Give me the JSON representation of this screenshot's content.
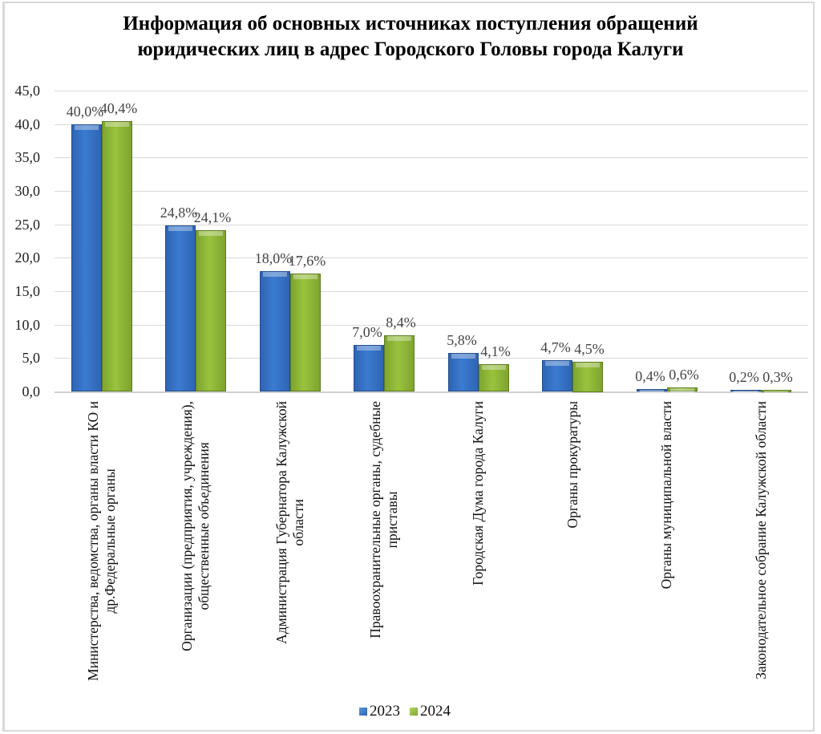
{
  "chart_data": {
    "type": "bar",
    "title": "Информация об основных источниках поступления обращений юридических лиц в адрес Городского Головы города Калуги",
    "title_lines": [
      "Информация об основных источниках поступления обращений",
      "юридических лиц в адрес Городского Головы города Калуги"
    ],
    "xlabel": "",
    "ylabel": "",
    "ylim": [
      0,
      45
    ],
    "yticks": [
      "0,0",
      "5,0",
      "10,0",
      "15,0",
      "20,0",
      "25,0",
      "30,0",
      "35,0",
      "40,0",
      "45,0"
    ],
    "grid": true,
    "legend_position": "bottom",
    "categories": [
      "Министерства, ведомства, органы власти КО и др.Федеральные органы",
      "Организации (предприятия, учреждения), общественные объединения",
      "Администрация Губернатора Калужской области",
      "Правоохранительные органы, судебные приставы",
      "Городская Дума города Калуги",
      "Органы прокуратуры",
      "Органы муниципальной  власти",
      "Законодательное собрание Калужской области"
    ],
    "category_lines": [
      [
        "Министерства, ведомства, органы власти КО и",
        "др.Федеральные органы"
      ],
      [
        "Организации (предприятия, учреждения),",
        "общественные объединения"
      ],
      [
        "Администрация Губернатора Калужской",
        "области"
      ],
      [
        "Правоохранительные органы, судебные",
        "приставы"
      ],
      [
        "Городская Дума города Калуги"
      ],
      [
        "Органы прокуратуры"
      ],
      [
        "Органы муниципальной  власти"
      ],
      [
        "Законодательное собрание Калужской области"
      ]
    ],
    "series": [
      {
        "name": "2023",
        "color": "#3a7bd0",
        "values": [
          40.0,
          24.8,
          18.0,
          7.0,
          5.8,
          4.7,
          0.4,
          0.2
        ],
        "labels": [
          "40,0%",
          "24,8%",
          "18,0%",
          "7,0%",
          "5,8%",
          "4,7%",
          "0,4%",
          "0,2%"
        ]
      },
      {
        "name": "2024",
        "color": "#99c33e",
        "values": [
          40.4,
          24.1,
          17.6,
          8.4,
          4.1,
          4.5,
          0.6,
          0.3
        ],
        "labels": [
          "40,4%",
          "24,1%",
          "17,6%",
          "8,4%",
          "4,1%",
          "4,5%",
          "0,6%",
          "0,3%"
        ]
      }
    ]
  }
}
